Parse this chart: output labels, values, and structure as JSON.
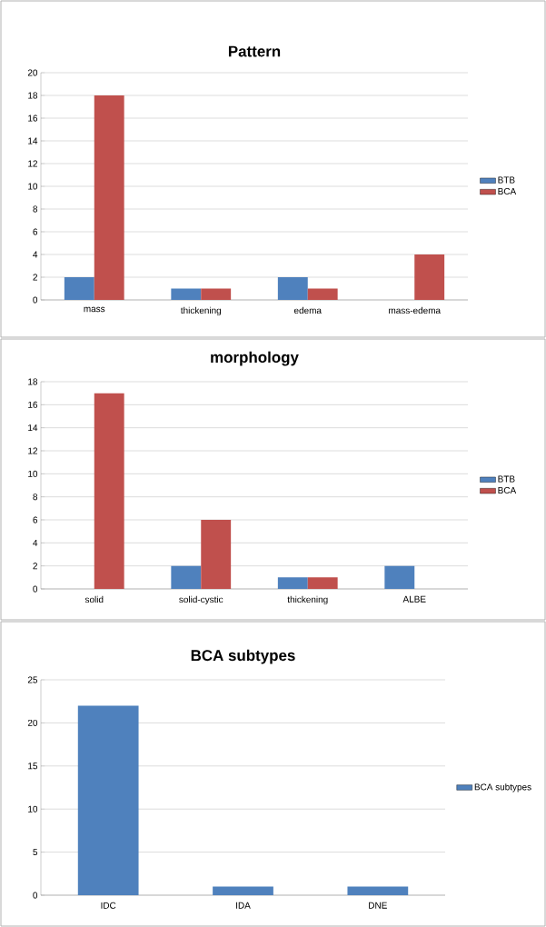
{
  "chart_data": [
    {
      "type": "bar",
      "title": "Pattern",
      "categories": [
        "mass",
        "thickening",
        "edema",
        "mass-edema"
      ],
      "series": [
        {
          "name": "BTB",
          "color": "#4f81bd",
          "values": [
            2,
            1,
            2,
            0
          ]
        },
        {
          "name": "BCA",
          "color": "#c0504d",
          "values": [
            18,
            1,
            1,
            4
          ]
        }
      ],
      "ylim": [
        0,
        20
      ],
      "yticks": [
        0,
        2,
        4,
        6,
        8,
        10,
        12,
        14,
        16,
        18,
        20
      ],
      "grid": "y",
      "legend": "right"
    },
    {
      "type": "bar",
      "title": "morphology",
      "categories": [
        "solid",
        "solid-cystic",
        "thickening",
        "ALBE"
      ],
      "series": [
        {
          "name": "BTB",
          "color": "#4f81bd",
          "values": [
            0,
            2,
            1,
            2
          ]
        },
        {
          "name": "BCA",
          "color": "#c0504d",
          "values": [
            17,
            6,
            1,
            0
          ]
        }
      ],
      "ylim": [
        0,
        18
      ],
      "yticks": [
        0,
        2,
        4,
        6,
        8,
        10,
        12,
        14,
        16,
        18
      ],
      "grid": "y",
      "legend": "right"
    },
    {
      "type": "bar",
      "title": "BCA subtypes",
      "categories": [
        "IDC",
        "IDA",
        "DNE"
      ],
      "series": [
        {
          "name": "BCA subtypes",
          "color": "#4f81bd",
          "values": [
            22,
            1,
            1
          ]
        }
      ],
      "ylim": [
        0,
        25
      ],
      "yticks": [
        0,
        5,
        10,
        15,
        20,
        25
      ],
      "grid": "y",
      "legend": "right"
    }
  ]
}
